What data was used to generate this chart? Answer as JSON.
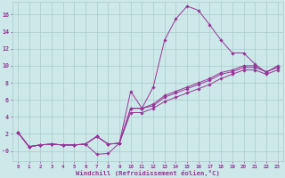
{
  "xlabel": "Windchill (Refroidissement éolien,°C)",
  "ylabel": "",
  "bg_color": "#cce8e8",
  "line_color": "#993399",
  "grid_color": "#aacccc",
  "xlim": [
    -0.5,
    23.5
  ],
  "ylim": [
    -1.2,
    17.5
  ],
  "xtick_labels": [
    "0",
    "1",
    "2",
    "3",
    "4",
    "5",
    "6",
    "7",
    "8",
    "9",
    "10",
    "11",
    "12",
    "13",
    "14",
    "15",
    "16",
    "17",
    "18",
    "19",
    "20",
    "21",
    "22",
    "23"
  ],
  "ytick_vals": [
    0,
    2,
    4,
    6,
    8,
    10,
    12,
    14,
    16
  ],
  "ytick_labels": [
    "-0",
    "2",
    "4",
    "6",
    "8",
    "10",
    "12",
    "14",
    "16"
  ],
  "series": [
    [
      2.2,
      0.5,
      0.7,
      0.8,
      0.7,
      0.7,
      0.8,
      1.7,
      0.8,
      0.9,
      7.0,
      5.0,
      7.5,
      13.0,
      15.5,
      17.0,
      16.5,
      14.8,
      13.0,
      11.5,
      11.5,
      10.2,
      9.2,
      10.0
    ],
    [
      2.2,
      0.5,
      0.7,
      0.8,
      0.7,
      0.7,
      0.8,
      -0.4,
      -0.3,
      0.9,
      5.0,
      5.0,
      5.3,
      6.3,
      6.8,
      7.3,
      7.8,
      8.3,
      9.0,
      9.3,
      9.8,
      9.8,
      9.3,
      9.8
    ],
    [
      2.2,
      0.5,
      0.7,
      0.8,
      0.7,
      0.7,
      0.8,
      1.7,
      0.8,
      0.9,
      5.0,
      5.0,
      5.5,
      6.5,
      7.0,
      7.5,
      8.0,
      8.5,
      9.2,
      9.5,
      10.0,
      10.0,
      9.3,
      9.8
    ],
    [
      2.2,
      0.5,
      0.7,
      0.8,
      0.7,
      0.7,
      0.8,
      1.7,
      0.8,
      0.9,
      4.5,
      4.5,
      5.0,
      5.8,
      6.3,
      6.8,
      7.3,
      7.8,
      8.5,
      9.0,
      9.5,
      9.5,
      9.0,
      9.5
    ]
  ]
}
